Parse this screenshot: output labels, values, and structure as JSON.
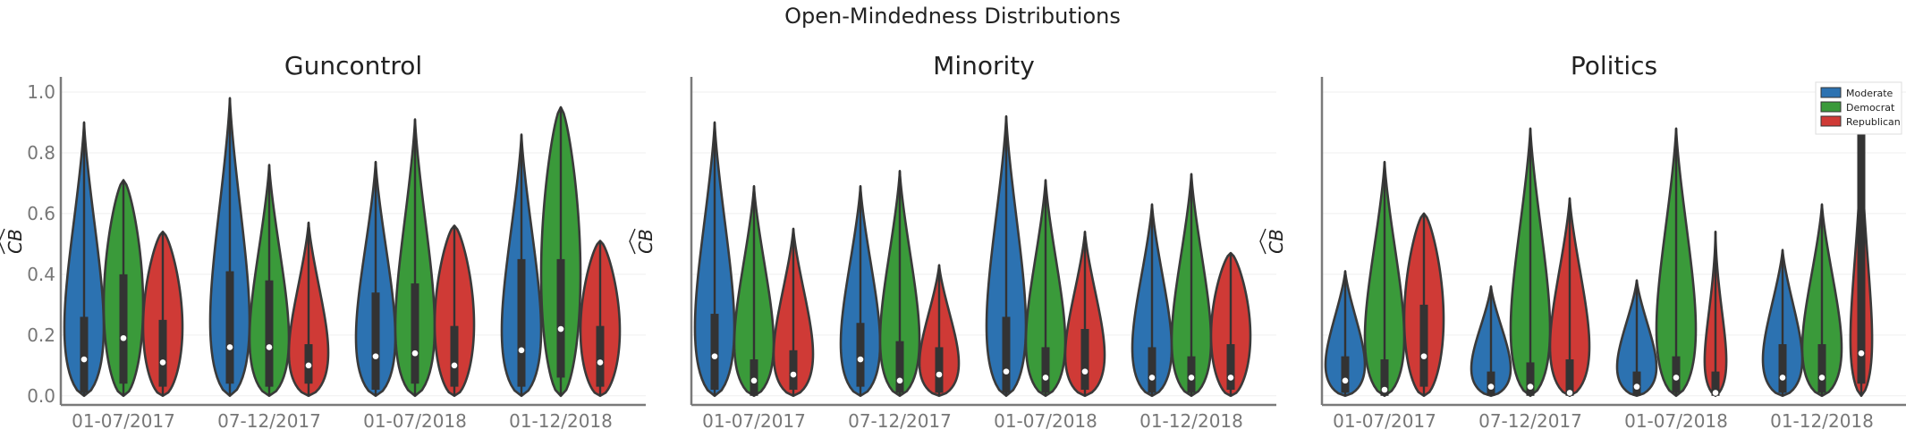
{
  "figure": {
    "title": "Open-Mindedness Distributions"
  },
  "legend": {
    "placement": "top-right of last panel",
    "items": [
      {
        "label": "Moderate",
        "color": "#2c72b1"
      },
      {
        "label": "Democrat",
        "color": "#3a9a3a"
      },
      {
        "label": "Republican",
        "color": "#cf3a36"
      }
    ]
  },
  "colors": {
    "axis": "#7a7a7a",
    "grid": "#efefef",
    "violin_edge": "#3a3a3a",
    "box": "#333333",
    "median": "#ffffff"
  },
  "chart_data": [
    {
      "type": "violin",
      "title": "Guncontrol",
      "ylabel": "CB-hat",
      "ylim": [
        -0.03,
        1.05
      ],
      "yticks": [
        "0.0",
        "0.2",
        "0.4",
        "0.6",
        "0.8",
        "1.0"
      ],
      "ytick_values": [
        0,
        0.2,
        0.4,
        0.6,
        0.8,
        1.0
      ],
      "categories": [
        "01-07/2017",
        "07-12/2017",
        "01-07/2018",
        "01-12/2018"
      ],
      "series": [
        {
          "name": "Moderate",
          "groups": [
            {
              "min": 0,
              "max": 0.9,
              "q1": 0.01,
              "median": 0.12,
              "q3": 0.26,
              "shape": "skew"
            },
            {
              "min": 0,
              "max": 0.98,
              "q1": 0.04,
              "median": 0.16,
              "q3": 0.41,
              "shape": "skew"
            },
            {
              "min": 0,
              "max": 0.77,
              "q1": 0.02,
              "median": 0.13,
              "q3": 0.34,
              "shape": "skew"
            },
            {
              "min": 0,
              "max": 0.86,
              "q1": 0.03,
              "median": 0.15,
              "q3": 0.45,
              "shape": "skew"
            }
          ]
        },
        {
          "name": "Democrat",
          "groups": [
            {
              "min": 0,
              "max": 0.71,
              "q1": 0.04,
              "median": 0.19,
              "q3": 0.4,
              "shape": "broad"
            },
            {
              "min": 0,
              "max": 0.76,
              "q1": 0.03,
              "median": 0.16,
              "q3": 0.38,
              "shape": "skew"
            },
            {
              "min": 0,
              "max": 0.91,
              "q1": 0.04,
              "median": 0.14,
              "q3": 0.37,
              "shape": "skew"
            },
            {
              "min": 0,
              "max": 0.95,
              "q1": 0.06,
              "median": 0.22,
              "q3": 0.45,
              "shape": "broad"
            }
          ]
        },
        {
          "name": "Republican",
          "groups": [
            {
              "min": 0,
              "max": 0.54,
              "q1": 0.03,
              "median": 0.11,
              "q3": 0.25,
              "shape": "broad"
            },
            {
              "min": 0,
              "max": 0.57,
              "q1": 0.04,
              "median": 0.1,
              "q3": 0.17,
              "shape": "skew"
            },
            {
              "min": 0,
              "max": 0.56,
              "q1": 0.03,
              "median": 0.1,
              "q3": 0.23,
              "shape": "broad"
            },
            {
              "min": 0,
              "max": 0.51,
              "q1": 0.03,
              "median": 0.11,
              "q3": 0.23,
              "shape": "broad"
            }
          ]
        }
      ]
    },
    {
      "type": "violin",
      "title": "Minority",
      "ylabel": "CB-hat",
      "ylim": [
        -0.03,
        1.05
      ],
      "yticks": [],
      "ytick_values": [],
      "categories": [
        "01-07/2017",
        "07-12/2017",
        "01-07/2018",
        "01-12/2018"
      ],
      "series": [
        {
          "name": "Moderate",
          "groups": [
            {
              "min": 0,
              "max": 0.9,
              "q1": 0.02,
              "median": 0.13,
              "q3": 0.27,
              "shape": "skew"
            },
            {
              "min": 0,
              "max": 0.69,
              "q1": 0.03,
              "median": 0.12,
              "q3": 0.24,
              "shape": "skew"
            },
            {
              "min": 0,
              "max": 0.92,
              "q1": 0.01,
              "median": 0.08,
              "q3": 0.26,
              "shape": "skew"
            },
            {
              "min": 0,
              "max": 0.63,
              "q1": 0.01,
              "median": 0.06,
              "q3": 0.16,
              "shape": "skew"
            }
          ]
        },
        {
          "name": "Democrat",
          "groups": [
            {
              "min": 0,
              "max": 0.69,
              "q1": 0.0,
              "median": 0.05,
              "q3": 0.12,
              "shape": "skew"
            },
            {
              "min": 0,
              "max": 0.74,
              "q1": 0.01,
              "median": 0.05,
              "q3": 0.18,
              "shape": "skew"
            },
            {
              "min": 0,
              "max": 0.71,
              "q1": 0.01,
              "median": 0.06,
              "q3": 0.16,
              "shape": "skew"
            },
            {
              "min": 0,
              "max": 0.73,
              "q1": 0.01,
              "median": 0.06,
              "q3": 0.13,
              "shape": "skew"
            }
          ]
        },
        {
          "name": "Republican",
          "groups": [
            {
              "min": 0,
              "max": 0.55,
              "q1": 0.02,
              "median": 0.07,
              "q3": 0.15,
              "shape": "skew"
            },
            {
              "min": 0,
              "max": 0.43,
              "q1": 0.01,
              "median": 0.07,
              "q3": 0.16,
              "shape": "skew"
            },
            {
              "min": 0,
              "max": 0.54,
              "q1": 0.02,
              "median": 0.08,
              "q3": 0.22,
              "shape": "skew"
            },
            {
              "min": 0,
              "max": 0.47,
              "q1": 0.02,
              "median": 0.06,
              "q3": 0.17,
              "shape": "broad"
            }
          ]
        }
      ]
    },
    {
      "type": "violin",
      "title": "Politics",
      "ylabel": "CB-hat",
      "ylim": [
        -0.03,
        1.05
      ],
      "yticks": [],
      "ytick_values": [],
      "categories": [
        "01-07/2017",
        "07-12/2017",
        "01-07/2018",
        "01-12/2018"
      ],
      "series": [
        {
          "name": "Moderate",
          "groups": [
            {
              "min": 0,
              "max": 0.41,
              "q1": 0.01,
              "median": 0.05,
              "q3": 0.13,
              "shape": "skew"
            },
            {
              "min": 0,
              "max": 0.36,
              "q1": 0.0,
              "median": 0.03,
              "q3": 0.08,
              "shape": "skew"
            },
            {
              "min": 0,
              "max": 0.38,
              "q1": 0.0,
              "median": 0.03,
              "q3": 0.08,
              "shape": "skew"
            },
            {
              "min": 0,
              "max": 0.48,
              "q1": 0.01,
              "median": 0.06,
              "q3": 0.17,
              "shape": "skew"
            }
          ]
        },
        {
          "name": "Democrat",
          "groups": [
            {
              "min": 0,
              "max": 0.77,
              "q1": 0.0,
              "median": 0.02,
              "q3": 0.12,
              "shape": "skew"
            },
            {
              "min": 0,
              "max": 0.88,
              "q1": 0.0,
              "median": 0.03,
              "q3": 0.11,
              "shape": "skew"
            },
            {
              "min": 0,
              "max": 0.88,
              "q1": 0.01,
              "median": 0.06,
              "q3": 0.13,
              "shape": "skew"
            },
            {
              "min": 0,
              "max": 0.63,
              "q1": 0.01,
              "median": 0.06,
              "q3": 0.17,
              "shape": "skew"
            }
          ]
        },
        {
          "name": "Republican",
          "groups": [
            {
              "min": 0,
              "max": 0.6,
              "q1": 0.03,
              "median": 0.13,
              "q3": 0.3,
              "shape": "broad"
            },
            {
              "min": 0,
              "max": 0.65,
              "q1": 0.0,
              "median": 0.01,
              "q3": 0.12,
              "shape": "skew"
            },
            {
              "min": 0,
              "max": 0.54,
              "q1": 0.0,
              "median": 0.01,
              "q3": 0.08,
              "shape": "thin"
            },
            {
              "min": 0,
              "max": 0.87,
              "q1": 0.04,
              "median": 0.14,
              "q3": 0.87,
              "shape": "thin"
            }
          ]
        }
      ]
    }
  ]
}
